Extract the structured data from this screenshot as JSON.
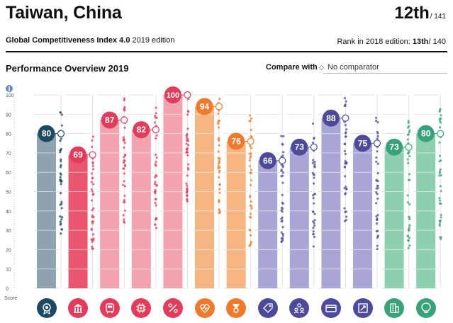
{
  "header": {
    "country": "Taiwan, China",
    "rank": "12th",
    "rank_of": "/ 141",
    "index_name": "Global Competitiveness Index 4.0",
    "edition": "2019 edition",
    "prev_rank_label": "Rank in 2018 edition:",
    "prev_rank": "13th",
    "prev_rank_of": "/ 140"
  },
  "section_title": "Performance Overview 2019",
  "compare": {
    "label": "Compare with",
    "value": "No comparator"
  },
  "info_glyph": "i",
  "chart_data": {
    "type": "bar",
    "ylabel": "Score",
    "ylim": [
      0,
      100
    ],
    "yticks": [
      0,
      10,
      20,
      30,
      40,
      50,
      60,
      70,
      80,
      90,
      100
    ],
    "values": [
      80,
      69,
      87,
      82,
      100,
      94,
      76,
      66,
      73,
      88,
      75,
      73,
      80
    ],
    "bar_colors": [
      "#8ea2b0",
      "#e9566f",
      "#f2a3b0",
      "#f2a3b0",
      "#f2a3b0",
      "#f5b583",
      "#f5b583",
      "#a9a6d6",
      "#a9a6d6",
      "#a9a6d6",
      "#a9a6d6",
      "#8ecfb0",
      "#8ecfb0"
    ],
    "circle_colors": [
      "#1e4963",
      "#e23c5b",
      "#e23c5b",
      "#e23c5b",
      "#e23c5b",
      "#ef7a2e",
      "#ef7a2e",
      "#4d4a9a",
      "#4d4a9a",
      "#4d4a9a",
      "#4d4a9a",
      "#3aa27a",
      "#3aa27a"
    ],
    "dot_colors": [
      "#1e4963",
      "#e23c5b",
      "#e23c5b",
      "#e23c5b",
      "#e23c5b",
      "#ef7a2e",
      "#ef7a2e",
      "#4d4a9a",
      "#4d4a9a",
      "#4d4a9a",
      "#4d4a9a",
      "#3aa27a",
      "#3aa27a"
    ],
    "grid": true
  },
  "pillar_icons": [
    {
      "name": "institutions-icon",
      "color": "#1e4963"
    },
    {
      "name": "infrastructure-icon",
      "color": "#e23c5b"
    },
    {
      "name": "ict-adoption-icon",
      "color": "#e23c5b"
    },
    {
      "name": "macroeconomic-stability-icon",
      "color": "#e23c5b"
    },
    {
      "name": "health-icon",
      "color": "#e23c5b"
    },
    {
      "name": "skills-icon",
      "color": "#ef7a2e"
    },
    {
      "name": "product-market-icon",
      "color": "#ef7a2e"
    },
    {
      "name": "labour-market-icon",
      "color": "#4d4a9a"
    },
    {
      "name": "financial-system-icon",
      "color": "#4d4a9a"
    },
    {
      "name": "market-size-icon",
      "color": "#4d4a9a"
    },
    {
      "name": "business-dynamism-icon",
      "color": "#4d4a9a"
    },
    {
      "name": "innovation-capability-icon",
      "color": "#3aa27a"
    },
    {
      "name": "innovation-bulb-icon",
      "color": "#3aa27a"
    }
  ]
}
